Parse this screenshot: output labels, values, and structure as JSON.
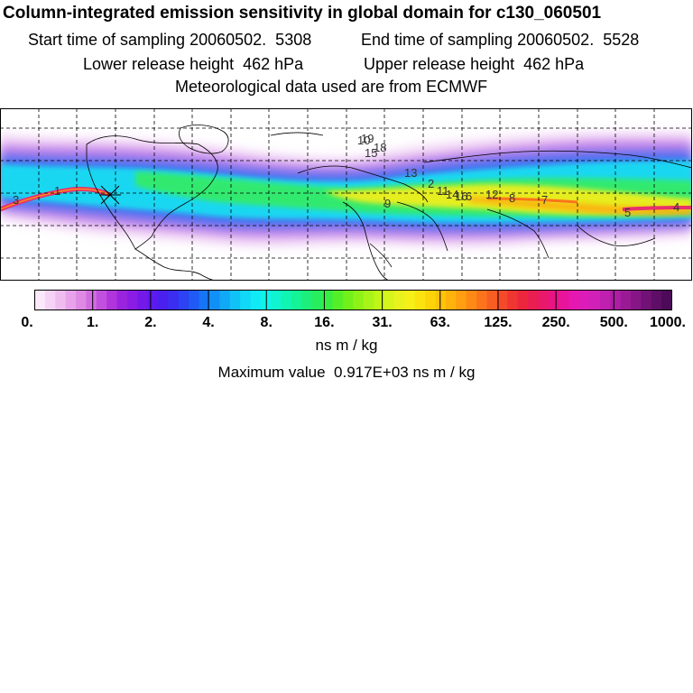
{
  "header": {
    "title": "Column-integrated emission sensitivity in global domain for c130_060501",
    "start_label": "Start time of sampling",
    "start_value": "20060502.  5308",
    "end_label": "End time of sampling",
    "end_value": "20060502.  5528",
    "lower_label": "Lower release height",
    "lower_value": "462 hPa",
    "upper_label": "Upper release height",
    "upper_value": "462 hPa",
    "met_line": "Meteorological data used are from ECMWF"
  },
  "map": {
    "region": "global domain",
    "trajectory_labels": [
      "1",
      "2",
      "3",
      "4",
      "5",
      "6",
      "7",
      "8",
      "9",
      "10",
      "11",
      "12",
      "13",
      "14",
      "15",
      "16",
      "18",
      "19"
    ],
    "label_color": "#333333",
    "plume_core_color": "#e8307a",
    "grid_line_style": "dashed"
  },
  "colorbar": {
    "tick_labels": [
      "0.",
      "1.",
      "2.",
      "4.",
      "8.",
      "16.",
      "31.",
      "63.",
      "125.",
      "250.",
      "500.",
      "1000."
    ],
    "colors": [
      "#fbe9fb",
      "#f6d3f6",
      "#efbcf0",
      "#e7a3ea",
      "#de8ae5",
      "#d16de0",
      "#c150de",
      "#b035dd",
      "#9a24de",
      "#8a1ce4",
      "#7519e8",
      "#5d1aec",
      "#4a20ef",
      "#3a2ef1",
      "#2c42f3",
      "#1f5af4",
      "#1675f5",
      "#1190f5",
      "#10a9f5",
      "#10c2f6",
      "#10d8f6",
      "#10eaf4",
      "#10f4e8",
      "#10f5d0",
      "#10f5b2",
      "#14f395",
      "#1cf07a",
      "#28ee5e",
      "#3aed42",
      "#55ef28",
      "#72f01a",
      "#8ef218",
      "#a8f418",
      "#c0f518",
      "#d6f51c",
      "#e8f31e",
      "#f6ef18",
      "#fbe310",
      "#fdd40a",
      "#fec40a",
      "#feb20c",
      "#fe9e10",
      "#fd8916",
      "#fb741c",
      "#f85e22",
      "#f44a2a",
      "#f03632",
      "#ec263c",
      "#ea1e50",
      "#e8186a",
      "#e81484",
      "#e8149c",
      "#e418b0",
      "#dc1cb8",
      "#d020b8",
      "#c020b0",
      "#ae1ea4",
      "#9a1a96",
      "#861686",
      "#721276",
      "#5e0e66",
      "#4c0a58"
    ],
    "units": "ns m / kg"
  },
  "footer": {
    "max_label": "Maximum value",
    "max_value": "0.917E+03",
    "max_units": "ns m / kg"
  }
}
